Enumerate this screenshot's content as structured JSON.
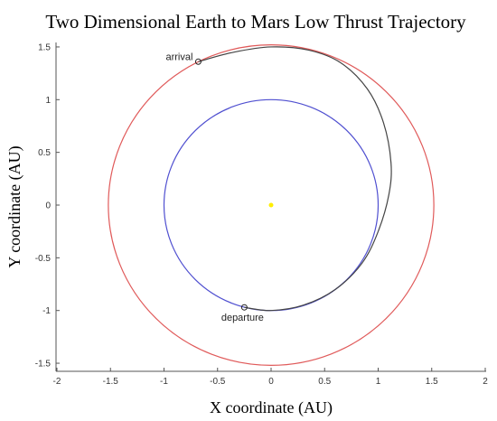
{
  "chart_data": {
    "type": "line",
    "title": "Two Dimensional Earth to Mars Low Thrust Trajectory",
    "xlabel": "X coordinate (AU)",
    "ylabel": "Y coordinate (AU)",
    "xlim": [
      -2,
      2
    ],
    "ylim": [
      -1.55,
      1.55
    ],
    "xticks": [
      "-2",
      "-1.5",
      "-1",
      "-0.5",
      "0",
      "0.5",
      "1",
      "1.5",
      "2"
    ],
    "yticks": [
      "-1.5",
      "-1",
      "-0.5",
      "0",
      "0.5",
      "1",
      "1.5"
    ],
    "grid": false,
    "series": [
      {
        "kind": "circle",
        "radius": 1.0,
        "color": "#4f4fd0"
      },
      {
        "kind": "circle",
        "radius": 1.52,
        "color": "#e05a5a"
      },
      {
        "kind": "path",
        "color": "#444444",
        "points": [
          [
            -0.25,
            -0.97
          ],
          [
            0.0,
            -1.0
          ],
          [
            0.3,
            -0.95
          ],
          [
            0.6,
            -0.8
          ],
          [
            0.85,
            -0.55
          ],
          [
            1.0,
            -0.25
          ],
          [
            1.1,
            0.1
          ],
          [
            1.12,
            0.4
          ],
          [
            1.05,
            0.78
          ],
          [
            0.9,
            1.1
          ],
          [
            0.65,
            1.35
          ],
          [
            0.35,
            1.47
          ],
          [
            0.0,
            1.5
          ],
          [
            -0.35,
            1.45
          ],
          [
            -0.68,
            1.36
          ]
        ]
      }
    ],
    "sun": {
      "x": 0,
      "y": 0,
      "color": "#ffee00"
    },
    "annotations": [
      {
        "text": "departure",
        "x": -0.25,
        "y": -0.97
      },
      {
        "text": "arrival",
        "x": -0.68,
        "y": 1.36
      }
    ]
  }
}
